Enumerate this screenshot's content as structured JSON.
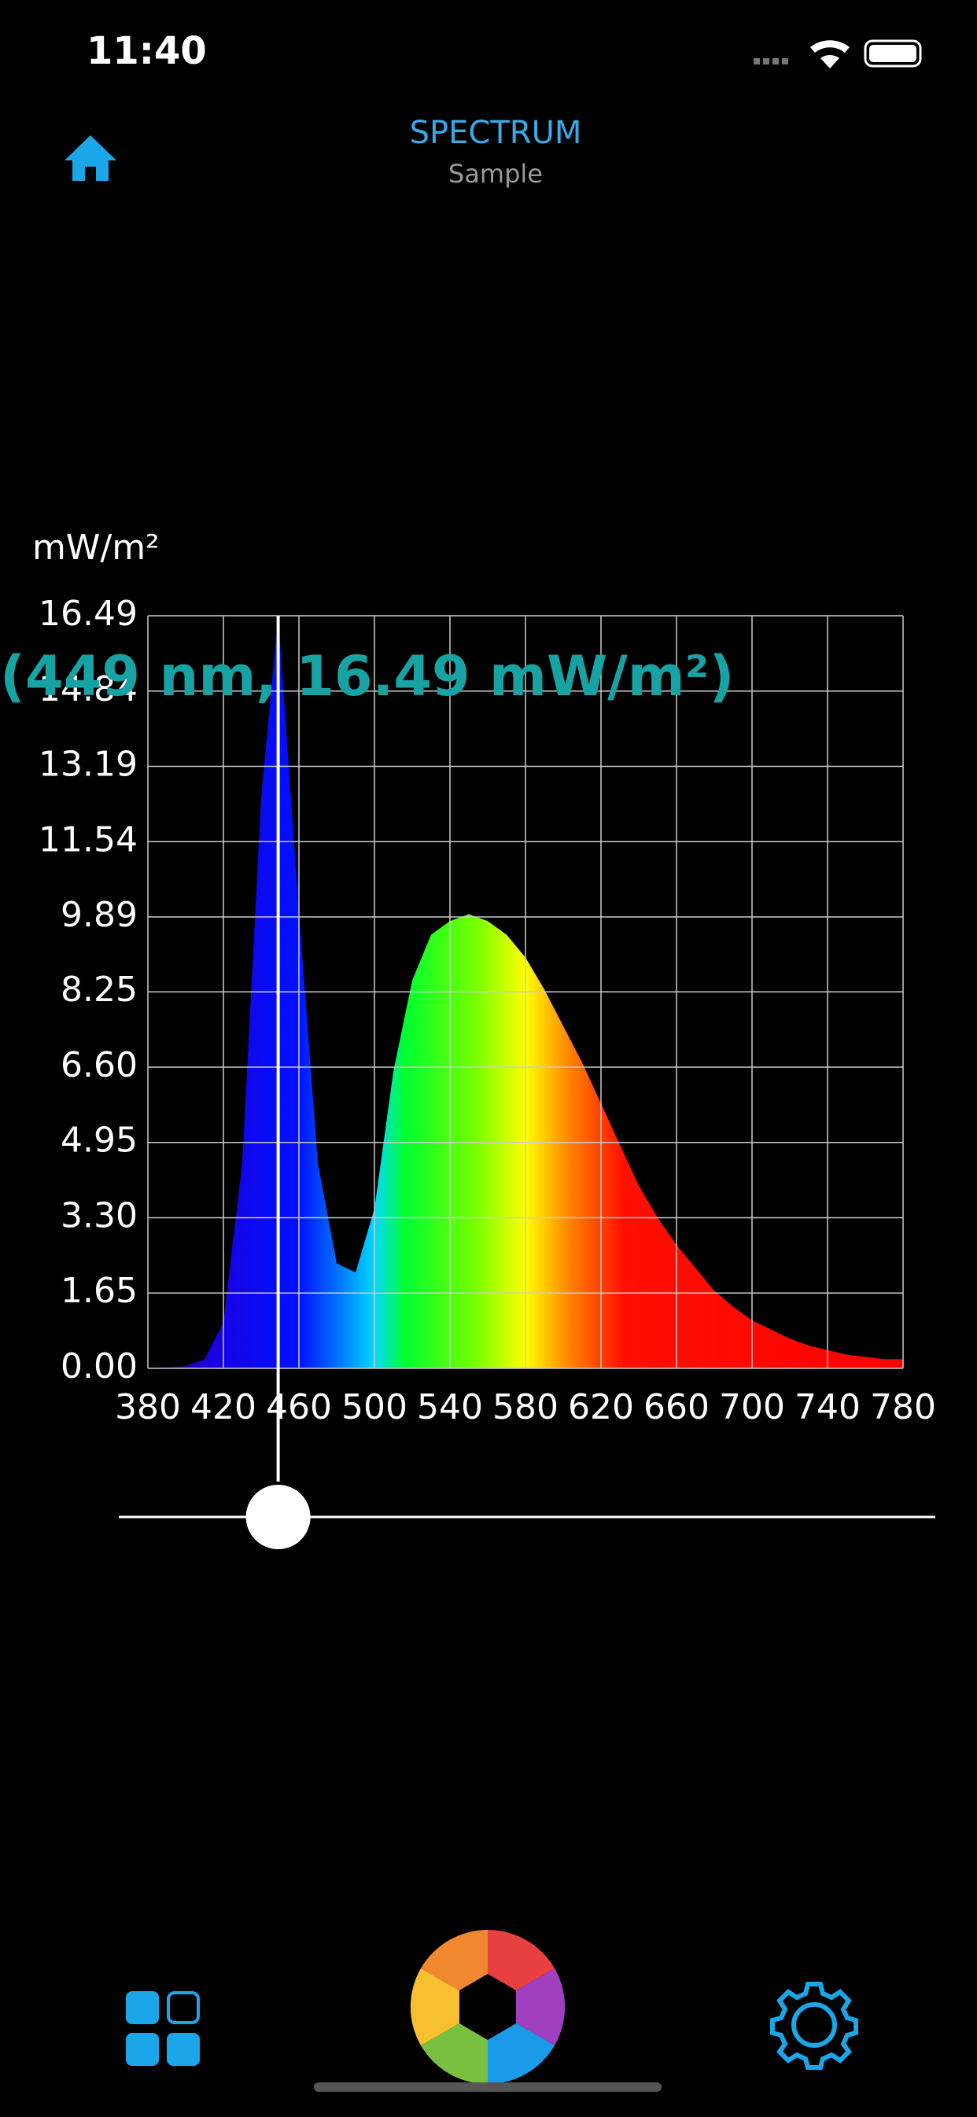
{
  "status_bar": {
    "time": "11:40"
  },
  "header": {
    "title": "SPECTRUM",
    "subtitle": "Sample"
  },
  "chart_data": {
    "type": "area",
    "y_label": "mW/m²",
    "annotation": "(449 nm, 16.49 mW/m²)",
    "x": [
      380,
      390,
      400,
      410,
      420,
      430,
      440,
      449,
      460,
      470,
      480,
      490,
      500,
      510,
      520,
      530,
      540,
      550,
      560,
      570,
      580,
      590,
      600,
      610,
      620,
      630,
      640,
      650,
      660,
      670,
      680,
      690,
      700,
      710,
      720,
      730,
      740,
      750,
      760,
      770,
      780
    ],
    "values": [
      0,
      0.02,
      0.05,
      0.2,
      1.0,
      4.5,
      12.5,
      16.49,
      10,
      4.5,
      2.3,
      2.1,
      3.5,
      6.5,
      8.5,
      9.5,
      9.8,
      9.95,
      9.8,
      9.5,
      9.0,
      8.3,
      7.5,
      6.7,
      5.8,
      4.9,
      4.0,
      3.3,
      2.7,
      2.2,
      1.7,
      1.35,
      1.05,
      0.85,
      0.65,
      0.5,
      0.4,
      0.3,
      0.25,
      0.2,
      0.2
    ],
    "xlim": [
      380,
      780
    ],
    "ylim": [
      0,
      16.49
    ],
    "xticks": [
      380,
      420,
      460,
      500,
      540,
      580,
      620,
      660,
      700,
      740,
      780
    ],
    "yticks": [
      {
        "value": 0,
        "label": "0.00"
      },
      1.65,
      {
        "value": 3.3,
        "label": "3.30"
      },
      4.95,
      {
        "value": 6.6,
        "label": "6.60"
      },
      8.25,
      9.89,
      11.54,
      13.19,
      14.84,
      16.49
    ],
    "grid": true
  }
}
